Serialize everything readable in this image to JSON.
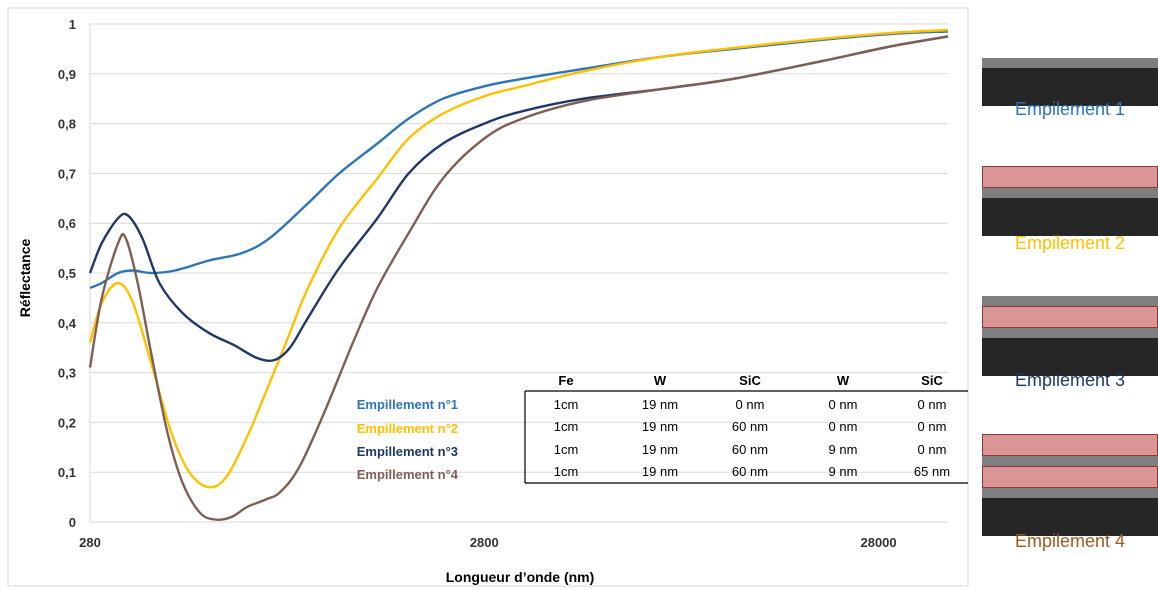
{
  "chart_data": {
    "type": "line",
    "xlabel": "Longueur d’onde (nm)",
    "ylabel": "Réflectance",
    "x_scale": "log",
    "xlim": [
      280,
      42000
    ],
    "ylim": [
      0,
      1
    ],
    "x_ticks": [
      "280",
      "2800",
      "28000"
    ],
    "y_ticks": [
      "0",
      "0,1",
      "0,2",
      "0,3",
      "0,4",
      "0,5",
      "0,6",
      "0,7",
      "0,8",
      "0,9",
      "1"
    ],
    "grid": true,
    "legend_position": "inside center",
    "series": [
      {
        "name": "Empillement n°1",
        "color": "#2e75b6",
        "points": [
          [
            280,
            0.47
          ],
          [
            300,
            0.48
          ],
          [
            330,
            0.5
          ],
          [
            360,
            0.505
          ],
          [
            400,
            0.5
          ],
          [
            460,
            0.505
          ],
          [
            560,
            0.525
          ],
          [
            680,
            0.54
          ],
          [
            800,
            0.57
          ],
          [
            1000,
            0.64
          ],
          [
            1200,
            0.7
          ],
          [
            1500,
            0.76
          ],
          [
            1800,
            0.81
          ],
          [
            2200,
            0.85
          ],
          [
            2800,
            0.875
          ],
          [
            3500,
            0.89
          ],
          [
            5000,
            0.91
          ],
          [
            8000,
            0.935
          ],
          [
            12000,
            0.95
          ],
          [
            20000,
            0.968
          ],
          [
            30000,
            0.98
          ],
          [
            42000,
            0.985
          ]
        ]
      },
      {
        "name": "Empillement n°2",
        "color": "#ffc000",
        "points": [
          [
            280,
            0.36
          ],
          [
            300,
            0.44
          ],
          [
            330,
            0.48
          ],
          [
            360,
            0.44
          ],
          [
            400,
            0.32
          ],
          [
            450,
            0.18
          ],
          [
            500,
            0.1
          ],
          [
            560,
            0.07
          ],
          [
            620,
            0.09
          ],
          [
            700,
            0.17
          ],
          [
            800,
            0.28
          ],
          [
            900,
            0.38
          ],
          [
            1000,
            0.47
          ],
          [
            1200,
            0.59
          ],
          [
            1500,
            0.69
          ],
          [
            1800,
            0.77
          ],
          [
            2200,
            0.82
          ],
          [
            2800,
            0.855
          ],
          [
            3500,
            0.875
          ],
          [
            5000,
            0.905
          ],
          [
            8000,
            0.935
          ],
          [
            12000,
            0.952
          ],
          [
            20000,
            0.97
          ],
          [
            30000,
            0.982
          ],
          [
            42000,
            0.988
          ]
        ]
      },
      {
        "name": "Empillement n°3",
        "color": "#1f3864",
        "points": [
          [
            280,
            0.5
          ],
          [
            300,
            0.56
          ],
          [
            330,
            0.61
          ],
          [
            350,
            0.615
          ],
          [
            380,
            0.57
          ],
          [
            420,
            0.48
          ],
          [
            480,
            0.42
          ],
          [
            560,
            0.38
          ],
          [
            650,
            0.355
          ],
          [
            740,
            0.33
          ],
          [
            820,
            0.325
          ],
          [
            900,
            0.35
          ],
          [
            1000,
            0.41
          ],
          [
            1200,
            0.51
          ],
          [
            1500,
            0.61
          ],
          [
            1800,
            0.7
          ],
          [
            2200,
            0.76
          ],
          [
            2800,
            0.8
          ],
          [
            3500,
            0.825
          ],
          [
            5000,
            0.85
          ],
          [
            8000,
            0.87
          ],
          [
            12000,
            0.89
          ],
          [
            20000,
            0.925
          ],
          [
            30000,
            0.955
          ],
          [
            42000,
            0.975
          ]
        ]
      },
      {
        "name": "Empillement n°4",
        "color": "#7f5f54",
        "points": [
          [
            280,
            0.31
          ],
          [
            300,
            0.45
          ],
          [
            330,
            0.56
          ],
          [
            345,
            0.57
          ],
          [
            370,
            0.48
          ],
          [
            400,
            0.34
          ],
          [
            440,
            0.18
          ],
          [
            480,
            0.08
          ],
          [
            530,
            0.02
          ],
          [
            580,
            0.005
          ],
          [
            640,
            0.01
          ],
          [
            700,
            0.03
          ],
          [
            780,
            0.045
          ],
          [
            850,
            0.06
          ],
          [
            950,
            0.11
          ],
          [
            1100,
            0.22
          ],
          [
            1300,
            0.36
          ],
          [
            1500,
            0.47
          ],
          [
            1800,
            0.58
          ],
          [
            2200,
            0.69
          ],
          [
            2800,
            0.77
          ],
          [
            3500,
            0.81
          ],
          [
            5000,
            0.845
          ],
          [
            8000,
            0.87
          ],
          [
            12000,
            0.89
          ],
          [
            20000,
            0.925
          ],
          [
            30000,
            0.955
          ],
          [
            42000,
            0.975
          ]
        ]
      }
    ]
  },
  "table": {
    "headers": [
      "Fe",
      "W",
      "SiC",
      "W",
      "SiC"
    ],
    "rows": [
      [
        "1cm",
        "19 nm",
        "0 nm",
        "0 nm",
        "0 nm"
      ],
      [
        "1cm",
        "19 nm",
        "60 nm",
        "0 nm",
        "0 nm"
      ],
      [
        "1cm",
        "19 nm",
        "60 nm",
        "9 nm",
        "0 nm"
      ],
      [
        "1cm",
        "19 nm",
        "60 nm",
        "9 nm",
        "65 nm"
      ]
    ]
  },
  "stacks": [
    {
      "label": "Empilement 1",
      "color": "#2e75b6",
      "layers": [
        "W",
        "Fe"
      ]
    },
    {
      "label": "Empilement 2",
      "color": "#ffc000",
      "layers": [
        "SiC",
        "W",
        "Fe"
      ]
    },
    {
      "label": "Empilement 3",
      "color": "#1f3864",
      "layers": [
        "W",
        "SiC",
        "W",
        "Fe"
      ]
    },
    {
      "label": "Empilement 4",
      "color": "#9c5a20",
      "layers": [
        "SiC",
        "W",
        "SiC",
        "W",
        "Fe"
      ]
    }
  ]
}
